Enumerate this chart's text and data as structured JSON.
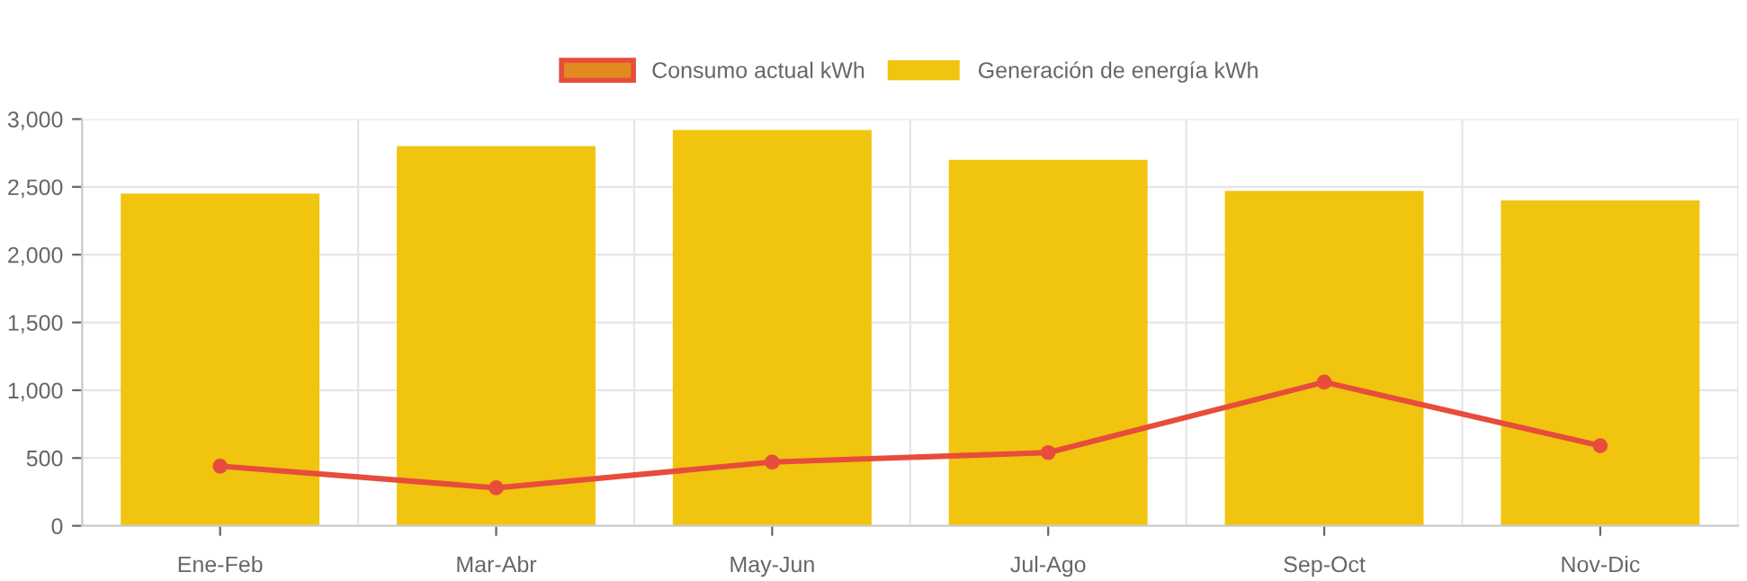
{
  "chart_data": {
    "type": "bar",
    "categories": [
      "Ene-Feb",
      "Mar-Abr",
      "May-Jun",
      "Jul-Ago",
      "Sep-Oct",
      "Nov-Dic"
    ],
    "series": [
      {
        "name": "Consumo actual kWh",
        "type": "line",
        "color": "#e74c3c",
        "values": [
          440,
          280,
          470,
          540,
          1060,
          590
        ]
      },
      {
        "name": "Generación de energía kWh",
        "color": "#f1c40f",
        "values": [
          2450,
          2800,
          2920,
          2700,
          2470,
          2400
        ]
      }
    ],
    "ylim": [
      0,
      3000
    ],
    "yticks": [
      {
        "value": 0,
        "label": "0"
      },
      {
        "value": 500,
        "label": "500"
      },
      {
        "value": 1000,
        "label": "1,000"
      },
      {
        "value": 1500,
        "label": "1,500"
      },
      {
        "value": 2000,
        "label": "2,000"
      },
      {
        "value": 2500,
        "label": "2,500"
      },
      {
        "value": 3000,
        "label": "3,000"
      }
    ],
    "grid": true,
    "legend": "top",
    "marker": "circle"
  }
}
